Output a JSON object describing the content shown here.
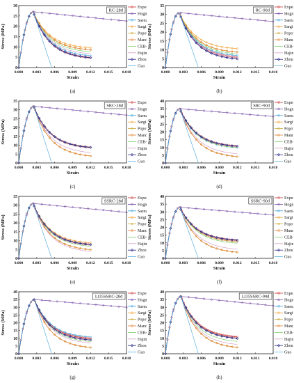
{
  "figure": {
    "series_styles": {
      "Experimental": {
        "color": "#cc3333",
        "marker": "circle"
      },
      "Hognestad": {
        "color": "#7a4fa8",
        "marker": "circle"
      },
      "Saenz": {
        "color": "#3aa0d8",
        "marker": "circle"
      },
      "Sargin": {
        "color": "#f0a030",
        "marker": "circle"
      },
      "Popovics": {
        "color": "#c9a93a",
        "marker": "circle"
      },
      "Mander et al.": {
        "color": "#e08030",
        "marker": "circle"
      },
      "CEB-FIP": {
        "color": "#7ccf6a",
        "marker": "none"
      },
      "Hajime": {
        "color": "#d4a0c8",
        "marker": "none"
      },
      "Zhou et al.": {
        "color": "#2c2c8c",
        "marker": "diamond"
      },
      "Guo": {
        "color": "#5bb0e0",
        "marker": "none"
      }
    }
  },
  "chart_data": [
    {
      "type": "line",
      "panel": "(a)",
      "title": "RC-28d",
      "xlabel": "Strain",
      "ylabel": "Stress (MPa)",
      "xlim": [
        0,
        0.018
      ],
      "ylim": [
        0,
        30
      ],
      "xticks": [
        "0.000",
        "0.003",
        "0.006",
        "0.009",
        "0.012",
        "0.015",
        "0.018"
      ],
      "yticks": [
        "0",
        "5",
        "10",
        "15",
        "20",
        "25",
        "30"
      ],
      "legend_position": "top-right",
      "peak": {
        "strain": 0.0024,
        "stress": 27
      },
      "guo_zero_strain": 0.0055,
      "hognestad_end": 22.5,
      "series": [
        {
          "name": "Experimental",
          "end": 4
        },
        {
          "name": "Hognestad",
          "end": 22.5
        },
        {
          "name": "Saenz",
          "end": 5
        },
        {
          "name": "Sargin",
          "end": 9
        },
        {
          "name": "Popovics",
          "end": 8
        },
        {
          "name": "Mander et al.",
          "end": 8
        },
        {
          "name": "CEB-FIP",
          "end": 7
        },
        {
          "name": "Hajime",
          "end": 6
        },
        {
          "name": "Zhou et al.",
          "end": 4
        },
        {
          "name": "Guo",
          "end": 0
        }
      ]
    },
    {
      "type": "line",
      "panel": "(b)",
      "title": "RC-90d",
      "xlabel": "Strain",
      "ylabel": "Stress (MPa)",
      "xlim": [
        0,
        0.018
      ],
      "ylim": [
        0,
        35
      ],
      "xticks": [
        "0.000",
        "0.003",
        "0.006",
        "0.009",
        "0.012",
        "0.015",
        "0.018"
      ],
      "yticks": [
        "0",
        "5",
        "10",
        "15",
        "20",
        "25",
        "30",
        "35"
      ],
      "legend_position": "top-right",
      "peak": {
        "strain": 0.0023,
        "stress": 31
      },
      "guo_zero_strain": 0.0055,
      "hognestad_end": 26,
      "series": [
        {
          "name": "Experimental",
          "end": 5
        },
        {
          "name": "Hognestad",
          "end": 26
        },
        {
          "name": "Saenz",
          "end": 6
        },
        {
          "name": "Sargin",
          "end": 10
        },
        {
          "name": "Popovics",
          "end": 8
        },
        {
          "name": "Mander et al.",
          "end": 8
        },
        {
          "name": "CEB-FIP",
          "end": 7
        },
        {
          "name": "Hajime",
          "end": 5
        },
        {
          "name": "Zhou et al.",
          "end": 4
        },
        {
          "name": "Guo",
          "end": 0
        }
      ]
    },
    {
      "type": "line",
      "panel": "(c)",
      "title": "SRC-28d",
      "xlabel": "Strain",
      "ylabel": "Stress (MPa)",
      "xlim": [
        0,
        0.018
      ],
      "ylim": [
        0,
        35
      ],
      "xticks": [
        "0.000",
        "0.003",
        "0.006",
        "0.009",
        "0.012",
        "0.015",
        "0.018"
      ],
      "yticks": [
        "0",
        "5",
        "10",
        "15",
        "20",
        "25",
        "30",
        "35"
      ],
      "legend_position": "top-right",
      "peak": {
        "strain": 0.0025,
        "stress": 32
      },
      "guo_zero_strain": 0.0055,
      "hognestad_end": 27,
      "series": [
        {
          "name": "Experimental",
          "end": 8
        },
        {
          "name": "Hognestad",
          "end": 27
        },
        {
          "name": "Saenz",
          "end": 8
        },
        {
          "name": "Sargin",
          "end": 8
        },
        {
          "name": "Popovics",
          "end": 3
        },
        {
          "name": "Mander et al.",
          "end": 3
        },
        {
          "name": "CEB-FIP",
          "end": 8
        },
        {
          "name": "Hajime",
          "end": 5
        },
        {
          "name": "Zhou et al.",
          "end": 8
        },
        {
          "name": "Guo",
          "end": 0
        }
      ]
    },
    {
      "type": "line",
      "panel": "(d)",
      "title": "SRC-90d",
      "xlabel": "Strain",
      "ylabel": "Stress (MPa)",
      "xlim": [
        0,
        0.018
      ],
      "ylim": [
        0,
        40
      ],
      "xticks": [
        "0.000",
        "0.003",
        "0.006",
        "0.009",
        "0.012",
        "0.015",
        "0.018"
      ],
      "yticks": [
        "0",
        "5",
        "10",
        "15",
        "20",
        "25",
        "30",
        "35",
        "40"
      ],
      "legend_position": "top-right",
      "peak": {
        "strain": 0.0024,
        "stress": 35
      },
      "guo_zero_strain": 0.0055,
      "hognestad_end": 30,
      "series": [
        {
          "name": "Experimental",
          "end": 10
        },
        {
          "name": "Hognestad",
          "end": 30
        },
        {
          "name": "Saenz",
          "end": 9
        },
        {
          "name": "Sargin",
          "end": 10
        },
        {
          "name": "Popovics",
          "end": 3
        },
        {
          "name": "Mander et al.",
          "end": 3
        },
        {
          "name": "CEB-FIP",
          "end": 9
        },
        {
          "name": "Hajime",
          "end": 5
        },
        {
          "name": "Zhou et al.",
          "end": 10
        },
        {
          "name": "Guo",
          "end": 0
        }
      ]
    },
    {
      "type": "line",
      "panel": "(e)",
      "title": "SSRC-28d",
      "xlabel": "Strain",
      "ylabel": "Stress (MPa)",
      "xlim": [
        0,
        0.018
      ],
      "ylim": [
        0,
        35
      ],
      "xticks": [
        "0.000",
        "0.003",
        "0.006",
        "0.009",
        "0.012",
        "0.015",
        "0.018"
      ],
      "yticks": [
        "0",
        "5",
        "10",
        "15",
        "20",
        "25",
        "30",
        "35"
      ],
      "legend_position": "top-right",
      "peak": {
        "strain": 0.0024,
        "stress": 31
      },
      "guo_zero_strain": 0.0055,
      "hognestad_end": 26,
      "series": [
        {
          "name": "Experimental",
          "end": 7
        },
        {
          "name": "Hognestad",
          "end": 26
        },
        {
          "name": "Saenz",
          "end": 7
        },
        {
          "name": "Sargin",
          "end": 8
        },
        {
          "name": "Popovics",
          "end": 4
        },
        {
          "name": "Mander et al.",
          "end": 4
        },
        {
          "name": "CEB-FIP",
          "end": 6
        },
        {
          "name": "Hajime",
          "end": 3
        },
        {
          "name": "Zhou et al.",
          "end": 7
        },
        {
          "name": "Guo",
          "end": 0
        }
      ]
    },
    {
      "type": "line",
      "panel": "(f)",
      "title": "SSRC-90d",
      "xlabel": "Strain",
      "ylabel": "Stress (MPa)",
      "xlim": [
        0,
        0.018
      ],
      "ylim": [
        0,
        40
      ],
      "xticks": [
        "0.000",
        "0.003",
        "0.006",
        "0.009",
        "0.012",
        "0.015",
        "0.018"
      ],
      "yticks": [
        "0",
        "5",
        "10",
        "15",
        "20",
        "25",
        "30",
        "35",
        "40"
      ],
      "legend_position": "top-right",
      "peak": {
        "strain": 0.0024,
        "stress": 33
      },
      "guo_zero_strain": 0.0055,
      "hognestad_end": 28,
      "series": [
        {
          "name": "Experimental",
          "end": 11
        },
        {
          "name": "Hognestad",
          "end": 28
        },
        {
          "name": "Saenz",
          "end": 10
        },
        {
          "name": "Sargin",
          "end": 10
        },
        {
          "name": "Popovics",
          "end": 3
        },
        {
          "name": "Mander et al.",
          "end": 3
        },
        {
          "name": "CEB-FIP",
          "end": 9
        },
        {
          "name": "Hajime",
          "end": 5
        },
        {
          "name": "Zhou et al.",
          "end": 11
        },
        {
          "name": "Guo",
          "end": 0
        }
      ]
    },
    {
      "type": "line",
      "panel": "(g)",
      "title": "Lt35SSRC-28d",
      "xlabel": "Strain",
      "ylabel": "Stress (MPa)",
      "xlim": [
        0,
        0.018
      ],
      "ylim": [
        0,
        40
      ],
      "xticks": [
        "0.000",
        "0.003",
        "0.006",
        "0.009",
        "0.012",
        "0.015",
        "0.018"
      ],
      "yticks": [
        "0",
        "5",
        "10",
        "15",
        "20",
        "25",
        "30",
        "35",
        "40"
      ],
      "legend_position": "top-right",
      "peak": {
        "strain": 0.0026,
        "stress": 35
      },
      "guo_zero_strain": 0.0055,
      "hognestad_end": 30,
      "series": [
        {
          "name": "Experimental",
          "end": 9
        },
        {
          "name": "Hognestad",
          "end": 30
        },
        {
          "name": "Saenz",
          "end": 10
        },
        {
          "name": "Sargin",
          "end": 8
        },
        {
          "name": "Popovics",
          "end": 3
        },
        {
          "name": "Mander et al.",
          "end": 3
        },
        {
          "name": "CEB-FIP",
          "end": 7
        },
        {
          "name": "Hajime",
          "end": 6
        },
        {
          "name": "Zhou et al.",
          "end": 8
        },
        {
          "name": "Guo",
          "end": 0
        }
      ]
    },
    {
      "type": "line",
      "panel": "(h)",
      "title": "Lt35SSRC-90d",
      "xlabel": "Strain",
      "ylabel": "Stress (MPa)",
      "xlim": [
        0,
        0.018
      ],
      "ylim": [
        0,
        40
      ],
      "xticks": [
        "0.000",
        "0.003",
        "0.006",
        "0.009",
        "0.012",
        "0.015",
        "0.018"
      ],
      "yticks": [
        "0",
        "5",
        "10",
        "15",
        "20",
        "25",
        "30",
        "35",
        "40"
      ],
      "legend_position": "top-right",
      "peak": {
        "strain": 0.0026,
        "stress": 37
      },
      "guo_zero_strain": 0.0055,
      "hognestad_end": 31,
      "series": [
        {
          "name": "Experimental",
          "end": 10
        },
        {
          "name": "Hognestad",
          "end": 31
        },
        {
          "name": "Saenz",
          "end": 9
        },
        {
          "name": "Sargin",
          "end": 9
        },
        {
          "name": "Popovics",
          "end": 3
        },
        {
          "name": "Mander et al.",
          "end": 3
        },
        {
          "name": "CEB-FIP",
          "end": 7
        },
        {
          "name": "Hajime",
          "end": 5
        },
        {
          "name": "Zhou et al.",
          "end": 9
        },
        {
          "name": "Guo",
          "end": 0
        }
      ]
    }
  ]
}
